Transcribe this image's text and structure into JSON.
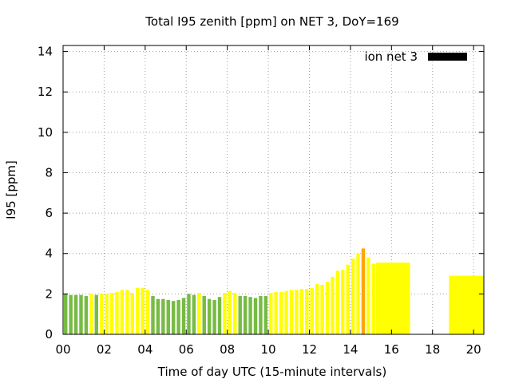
{
  "chart_data": {
    "type": "bar",
    "title": "Total I95 zenith [ppm] on NET 3, DoY=169",
    "xlabel": "Time of day UTC (15-minute intervals)",
    "ylabel": "I95 [ppm]",
    "xlim": [
      0,
      20.5
    ],
    "ylim": [
      0,
      14.3
    ],
    "xticks": [
      "00",
      "02",
      "04",
      "06",
      "08",
      "10",
      "12",
      "14",
      "16",
      "18",
      "20"
    ],
    "yticks": [
      "0",
      "2",
      "4",
      "6",
      "8",
      "10",
      "12",
      "14"
    ],
    "grid": true,
    "legend": {
      "label": "ion net 3",
      "color": "#000000",
      "position": "top-right"
    },
    "colors": {
      "green": "#77bb44",
      "yellow": "#ffff00",
      "orange": "#ffa500"
    },
    "series": [
      {
        "bars": [
          {
            "x": 0.0,
            "value": 2.0,
            "color": "green"
          },
          {
            "x": 0.25,
            "value": 1.95,
            "color": "green"
          },
          {
            "x": 0.5,
            "value": 1.95,
            "color": "green"
          },
          {
            "x": 0.75,
            "value": 1.95,
            "color": "green"
          },
          {
            "x": 1.0,
            "value": 1.9,
            "color": "green"
          },
          {
            "x": 1.25,
            "value": 2.0,
            "color": "yellow"
          },
          {
            "x": 1.5,
            "value": 1.95,
            "color": "green"
          },
          {
            "x": 1.75,
            "value": 2.0,
            "color": "yellow"
          },
          {
            "x": 2.0,
            "value": 2.0,
            "color": "yellow"
          },
          {
            "x": 2.25,
            "value": 2.05,
            "color": "yellow"
          },
          {
            "x": 2.5,
            "value": 2.1,
            "color": "yellow"
          },
          {
            "x": 2.75,
            "value": 2.2,
            "color": "yellow"
          },
          {
            "x": 3.0,
            "value": 2.2,
            "color": "yellow"
          },
          {
            "x": 3.25,
            "value": 2.05,
            "color": "yellow"
          },
          {
            "x": 3.5,
            "value": 2.3,
            "color": "yellow"
          },
          {
            "x": 3.75,
            "value": 2.3,
            "color": "yellow"
          },
          {
            "x": 4.0,
            "value": 2.2,
            "color": "yellow"
          },
          {
            "x": 4.25,
            "value": 1.9,
            "color": "green"
          },
          {
            "x": 4.5,
            "value": 1.75,
            "color": "green"
          },
          {
            "x": 4.75,
            "value": 1.75,
            "color": "green"
          },
          {
            "x": 5.0,
            "value": 1.7,
            "color": "green"
          },
          {
            "x": 5.25,
            "value": 1.65,
            "color": "green"
          },
          {
            "x": 5.5,
            "value": 1.7,
            "color": "green"
          },
          {
            "x": 5.75,
            "value": 1.8,
            "color": "green"
          },
          {
            "x": 6.0,
            "value": 2.0,
            "color": "green"
          },
          {
            "x": 6.25,
            "value": 1.95,
            "color": "green"
          },
          {
            "x": 6.5,
            "value": 2.05,
            "color": "yellow"
          },
          {
            "x": 6.75,
            "value": 1.9,
            "color": "green"
          },
          {
            "x": 7.0,
            "value": 1.75,
            "color": "green"
          },
          {
            "x": 7.25,
            "value": 1.7,
            "color": "green"
          },
          {
            "x": 7.5,
            "value": 1.85,
            "color": "green"
          },
          {
            "x": 7.75,
            "value": 2.05,
            "color": "yellow"
          },
          {
            "x": 8.0,
            "value": 2.15,
            "color": "yellow"
          },
          {
            "x": 8.25,
            "value": 2.05,
            "color": "yellow"
          },
          {
            "x": 8.5,
            "value": 1.9,
            "color": "green"
          },
          {
            "x": 8.75,
            "value": 1.9,
            "color": "green"
          },
          {
            "x": 9.0,
            "value": 1.85,
            "color": "green"
          },
          {
            "x": 9.25,
            "value": 1.8,
            "color": "green"
          },
          {
            "x": 9.5,
            "value": 1.9,
            "color": "green"
          },
          {
            "x": 9.75,
            "value": 1.9,
            "color": "green"
          },
          {
            "x": 10.0,
            "value": 2.05,
            "color": "yellow"
          },
          {
            "x": 10.25,
            "value": 2.1,
            "color": "yellow"
          },
          {
            "x": 10.5,
            "value": 2.1,
            "color": "yellow"
          },
          {
            "x": 10.75,
            "value": 2.15,
            "color": "yellow"
          },
          {
            "x": 11.0,
            "value": 2.2,
            "color": "yellow"
          },
          {
            "x": 11.25,
            "value": 2.2,
            "color": "yellow"
          },
          {
            "x": 11.5,
            "value": 2.25,
            "color": "yellow"
          },
          {
            "x": 11.75,
            "value": 2.25,
            "color": "yellow"
          },
          {
            "x": 12.0,
            "value": 2.3,
            "color": "yellow"
          },
          {
            "x": 12.25,
            "value": 2.5,
            "color": "yellow"
          },
          {
            "x": 12.5,
            "value": 2.45,
            "color": "yellow"
          },
          {
            "x": 12.75,
            "value": 2.6,
            "color": "yellow"
          },
          {
            "x": 13.0,
            "value": 2.85,
            "color": "yellow"
          },
          {
            "x": 13.25,
            "value": 3.15,
            "color": "yellow"
          },
          {
            "x": 13.5,
            "value": 3.2,
            "color": "yellow"
          },
          {
            "x": 13.75,
            "value": 3.45,
            "color": "yellow"
          },
          {
            "x": 14.0,
            "value": 3.75,
            "color": "yellow"
          },
          {
            "x": 14.25,
            "value": 4.0,
            "color": "yellow"
          },
          {
            "x": 14.5,
            "value": 4.25,
            "color": "orange"
          },
          {
            "x": 14.75,
            "value": 3.8,
            "color": "yellow"
          },
          {
            "x": 15.0,
            "value": 3.5,
            "color": "yellow"
          }
        ],
        "blocks": [
          {
            "x_start": 15.25,
            "x_end": 16.9,
            "value": 3.55,
            "color": "yellow"
          },
          {
            "x_start": 18.8,
            "x_end": 20.5,
            "value": 2.9,
            "color": "yellow"
          }
        ]
      }
    ]
  }
}
